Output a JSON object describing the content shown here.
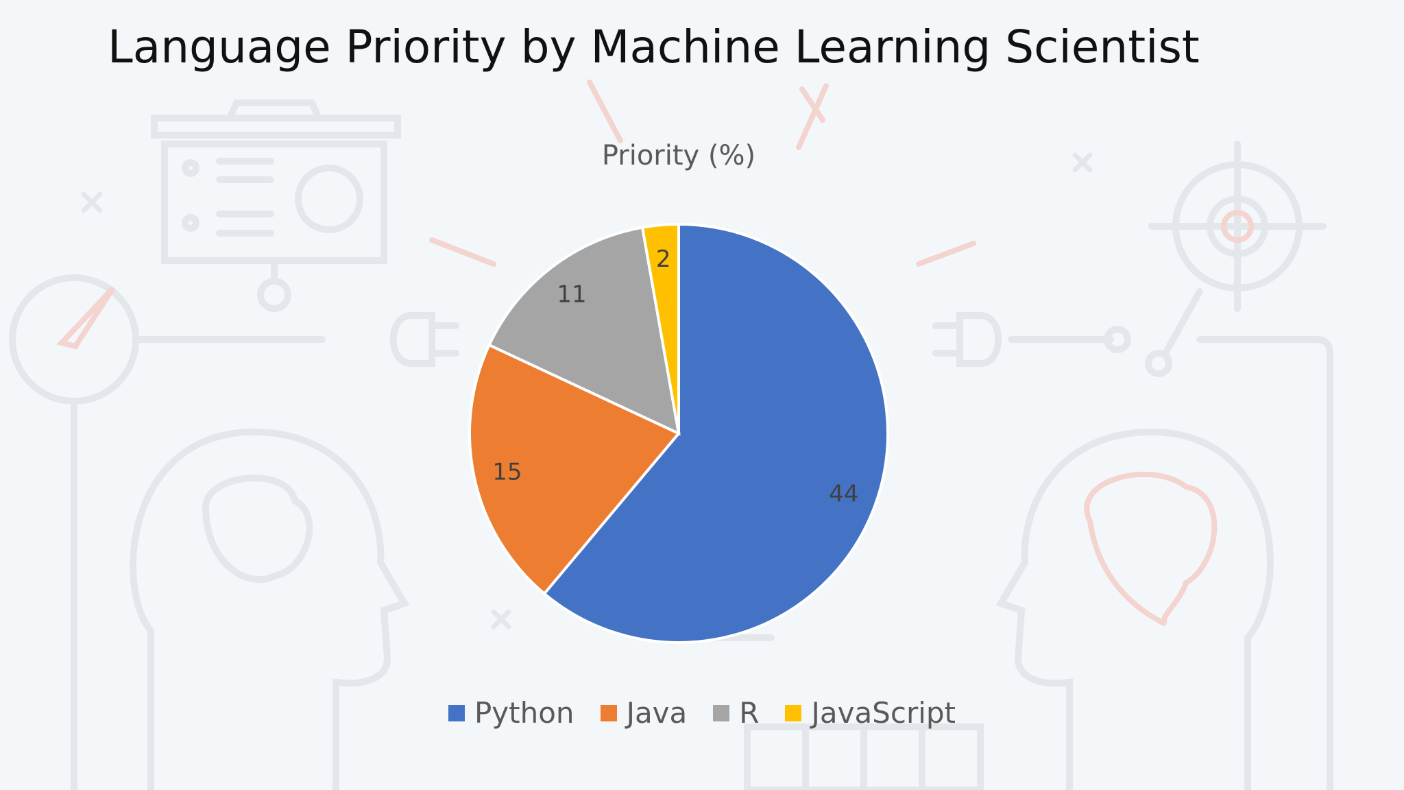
{
  "slide": {
    "title": "Language Priority by Machine Learning Scientist"
  },
  "chart_data": {
    "type": "pie",
    "title": "Priority (%)",
    "categories": [
      "Python",
      "Java",
      "R",
      "JavaScript"
    ],
    "values": [
      44,
      15,
      11,
      2
    ],
    "colors": [
      "#4472C4",
      "#ED7D31",
      "#A5A5A5",
      "#FFC000"
    ],
    "data_labels": [
      "44",
      "15",
      "11",
      "2"
    ],
    "legend_position": "bottom",
    "start_angle": "12 o'clock, clockwise"
  }
}
